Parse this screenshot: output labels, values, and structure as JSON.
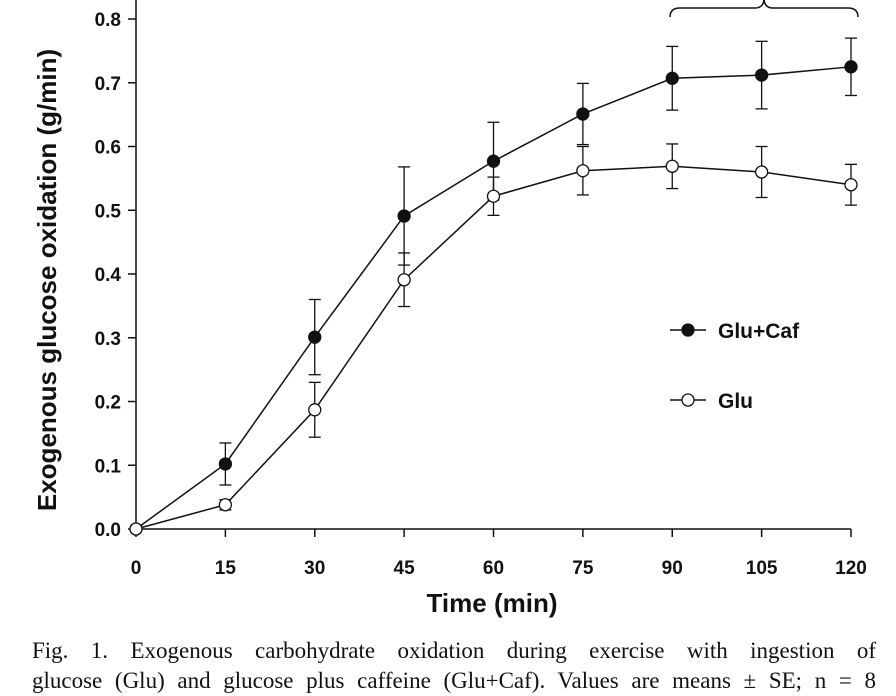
{
  "chart_data": {
    "type": "line",
    "xlabel": "Time (min)",
    "ylabel": "Exogenous glucose oxidation (g/min)",
    "x": [
      0,
      15,
      30,
      45,
      60,
      75,
      90,
      105,
      120
    ],
    "xticks": [
      "0",
      "15",
      "30",
      "45",
      "60",
      "75",
      "90",
      "105",
      "120"
    ],
    "yticks": [
      "0.0",
      "0.1",
      "0.2",
      "0.3",
      "0.4",
      "0.5",
      "0.6",
      "0.7",
      "0.8"
    ],
    "xlim": [
      0,
      120
    ],
    "ylim": [
      0,
      0.8
    ],
    "grid": false,
    "legend_position": "center-right",
    "series": [
      {
        "name": "Glu+Caf",
        "marker": "filled-circle",
        "values": [
          0,
          0.102,
          0.301,
          0.491,
          0.577,
          0.651,
          0.707,
          0.712,
          0.725
        ],
        "errors": [
          0,
          0.033,
          0.059,
          0.077,
          0.061,
          0.048,
          0.05,
          0.053,
          0.045
        ]
      },
      {
        "name": "Glu",
        "marker": "open-circle",
        "values": [
          0,
          0.038,
          0.187,
          0.391,
          0.522,
          0.562,
          0.569,
          0.56,
          0.54
        ],
        "errors": [
          0,
          0.008,
          0.043,
          0.042,
          0.03,
          0.038,
          0.035,
          0.04,
          0.032
        ]
      }
    ],
    "annotations": [
      "brace spanning 90–120 min"
    ]
  },
  "caption": {
    "line1": "Fig. 1. Exogenous carbohydrate oxidation during exercise with ingestion of",
    "line2": "glucose (Glu) and glucose plus caffeine (Glu+Caf). Values are means ± SE; n = 8"
  }
}
